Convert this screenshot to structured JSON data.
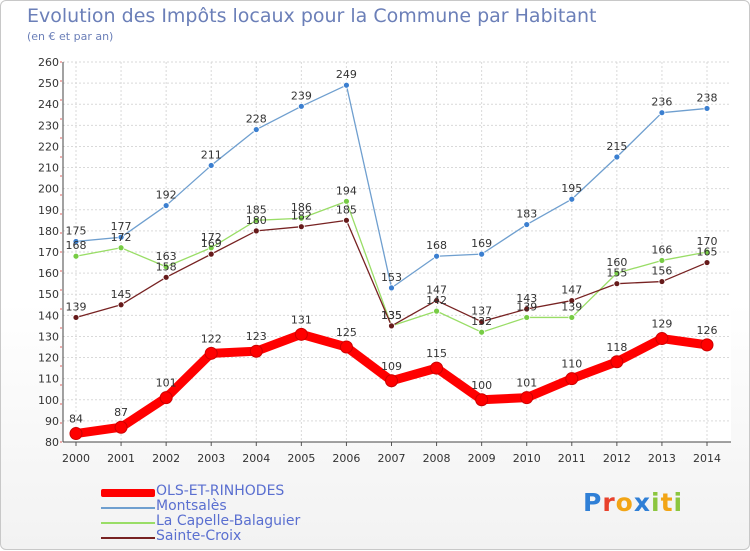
{
  "page": {
    "title": "Evolution des Impôts locaux pour la Commune par Habitant",
    "subtitle": "(en € et par an)"
  },
  "chart_data": {
    "type": "line",
    "title": "Evolution des Impôts locaux pour la Commune par Habitant",
    "subtitle": "(en € et par an)",
    "xlabel": "",
    "ylabel": "",
    "x": [
      "2000",
      "2001",
      "2002",
      "2003",
      "2004",
      "2005",
      "2006",
      "2007",
      "2008",
      "2009",
      "2010",
      "2011",
      "2012",
      "2013",
      "2014"
    ],
    "ylim": [
      80,
      260
    ],
    "yticks": [
      80,
      90,
      100,
      110,
      120,
      130,
      140,
      150,
      160,
      170,
      180,
      190,
      200,
      210,
      220,
      230,
      240,
      250,
      260
    ],
    "grid": true,
    "legend_position": "bottom-left",
    "series": [
      {
        "name": "OLS-ET-RINHODES",
        "color": "#ff0000",
        "values": [
          84,
          87,
          101,
          122,
          123,
          131,
          125,
          109,
          115,
          100,
          101,
          110,
          118,
          129,
          126
        ],
        "labels": [
          "84",
          "87",
          "101",
          "122",
          "123",
          "131",
          "125",
          "109",
          "115",
          "100",
          "101",
          "110",
          "118",
          "129",
          "126"
        ],
        "emphasis": "thick"
      },
      {
        "name": "Montsalès",
        "color": "#6f9fcf",
        "marker_color": "#3b7fd0",
        "values": [
          175,
          177,
          192,
          211,
          228,
          239,
          249,
          153,
          168,
          169,
          183,
          195,
          215,
          236,
          238
        ],
        "labels": [
          "175",
          "177",
          "192",
          "211",
          "228",
          "239",
          "249",
          "153",
          "168",
          "169",
          "183",
          "195",
          "215",
          "236",
          "238"
        ]
      },
      {
        "name": "La Capelle-Balaguier",
        "color": "#99dd66",
        "marker_color": "#77cc44",
        "values": [
          168,
          172,
          163,
          172,
          185,
          186,
          194,
          135,
          142,
          132,
          139,
          139,
          160,
          166,
          170
        ],
        "labels": [
          "168",
          "172",
          "163",
          "172",
          "185",
          "186",
          "194",
          "135",
          "142",
          "132",
          "139",
          "139",
          "160",
          "166",
          "170"
        ]
      },
      {
        "name": "Sainte-Croix",
        "color": "#772222",
        "marker_color": "#661a1a",
        "values": [
          139,
          145,
          158,
          169,
          180,
          182,
          185,
          135,
          147,
          137,
          143,
          147,
          155,
          156,
          165
        ],
        "labels": [
          "139",
          "145",
          "158",
          "169",
          "180",
          "182",
          "185",
          "135",
          "147",
          "137",
          "143",
          "147",
          "155",
          "156",
          "165"
        ]
      }
    ]
  },
  "legend": {
    "items": [
      {
        "label": "OLS-ET-RINHODES",
        "color": "#ff0000"
      },
      {
        "label": "Montsalès",
        "color": "#6f9fcf"
      },
      {
        "label": "La Capelle-Balaguier",
        "color": "#99dd66"
      },
      {
        "label": "Sainte-Croix",
        "color": "#772222"
      }
    ]
  },
  "logo": {
    "letters": [
      {
        "ch": "P",
        "color": "#2f7fd6"
      },
      {
        "ch": "r",
        "color": "#e8412c"
      },
      {
        "ch": "o",
        "color": "#f2a516"
      },
      {
        "ch": "x",
        "color": "#2f7fd6"
      },
      {
        "ch": "i",
        "color": "#8cc63f"
      },
      {
        "ch": "t",
        "color": "#f2a516"
      },
      {
        "ch": "i",
        "color": "#8cc63f"
      }
    ]
  }
}
